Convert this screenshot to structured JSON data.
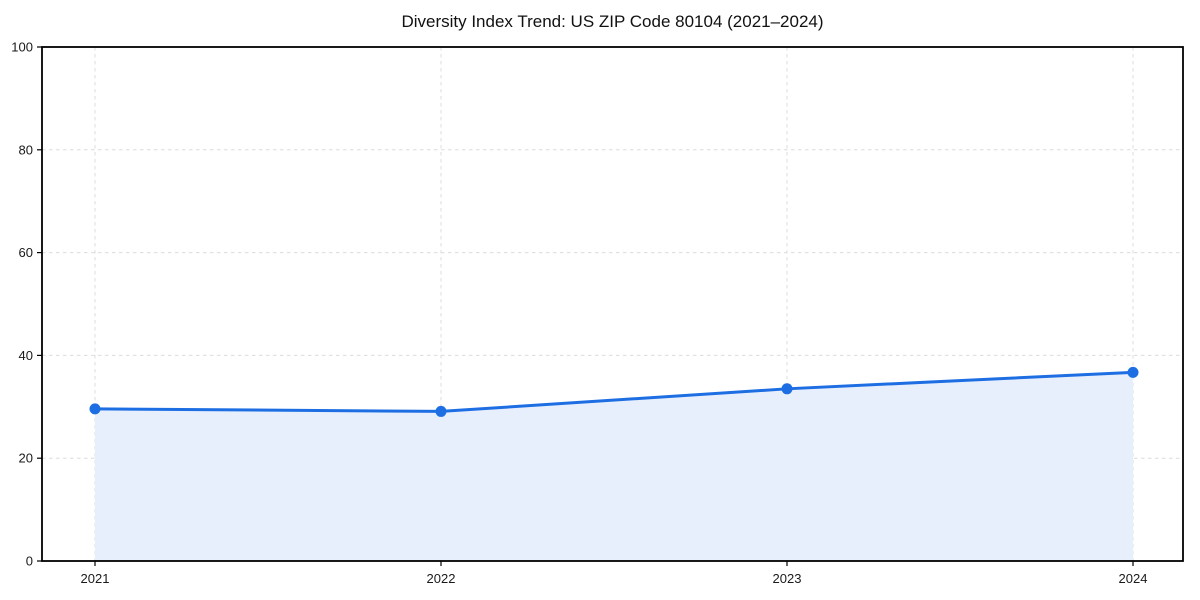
{
  "chart_data": {
    "type": "line",
    "title": "Diversity Index Trend: US ZIP Code 80104 (2021–2024)",
    "categories": [
      "2021",
      "2022",
      "2023",
      "2024"
    ],
    "series": [
      {
        "name": "Diversity Index",
        "values": [
          29.6,
          29.1,
          33.5,
          36.7
        ]
      }
    ],
    "values": [
      29.6,
      29.1,
      33.5,
      36.7
    ],
    "xlabel": "",
    "ylabel": "",
    "ylim": [
      0,
      100
    ],
    "yticks": [
      0,
      20,
      40,
      60,
      80,
      100
    ],
    "xticks": [
      "2021",
      "2022",
      "2023",
      "2024"
    ],
    "grid": "dashed, both axes",
    "legend": "none",
    "marker": "circle",
    "area_fill": true,
    "colors": {
      "line": "#1e6ee3",
      "marker": "#1e6ee3",
      "fill": "#e8effc",
      "grid": "#dcdcdc",
      "axis": "#000000",
      "tick_label": "#1a1a1a",
      "title": "#111111",
      "background": "#ffffff"
    }
  }
}
